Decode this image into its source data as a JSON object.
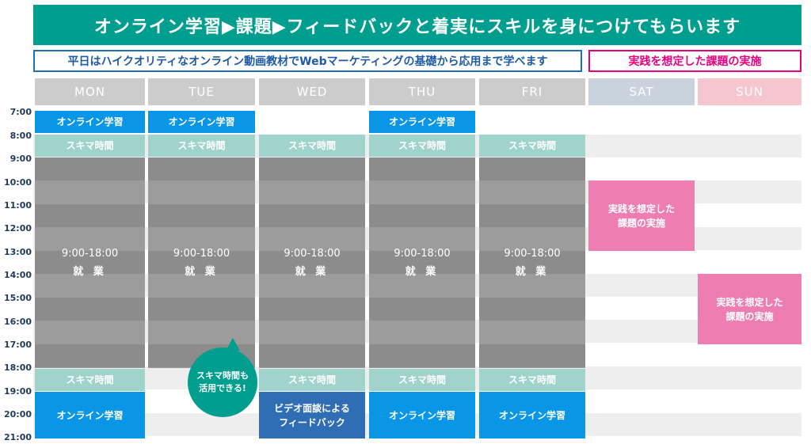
{
  "banner": "オンライン学習▶課題▶フィードバックと着実にスキルを身につけてもらいます",
  "weekday_note": "平日はハイクオリティなオンライン動画教材でWebマーケティングの基礎から応用まで学べます",
  "weekend_note": "実践を想定した課題の実施",
  "days": [
    "MON",
    "TUE",
    "WED",
    "THU",
    "FRI",
    "SAT",
    "SUN"
  ],
  "day_colors": {
    "weekday": "#cccccc",
    "sat": "#c9d3de",
    "sun": "#f6c6ce"
  },
  "times": [
    "7:00",
    "8:00",
    "9:00",
    "10:00",
    "11:00",
    "12:00",
    "13:00",
    "14:00",
    "15:00",
    "16:00",
    "17:00",
    "18:00",
    "19:00",
    "20:00",
    "21:00"
  ],
  "schedule": {
    "online_study": "オンライン学習",
    "spare_time": "スキマ時間",
    "work_hours": "9:00-18:00",
    "work_label": "就 業",
    "video_feedback_1": "ビデオ面談による",
    "video_feedback_2": "フィードバック",
    "weekend_task_1": "実践を想定した",
    "weekend_task_2": "課題の実施"
  },
  "bubble": {
    "line1": "スキマ時間も",
    "line2": "活用できる!"
  },
  "colors": {
    "accent": "#009e8f",
    "online": "#0a96e6",
    "feedback": "#2f6eb5",
    "spare": "#9fd3cc",
    "work": "#8c8c8c",
    "weekend_task": "#ee7db2"
  }
}
